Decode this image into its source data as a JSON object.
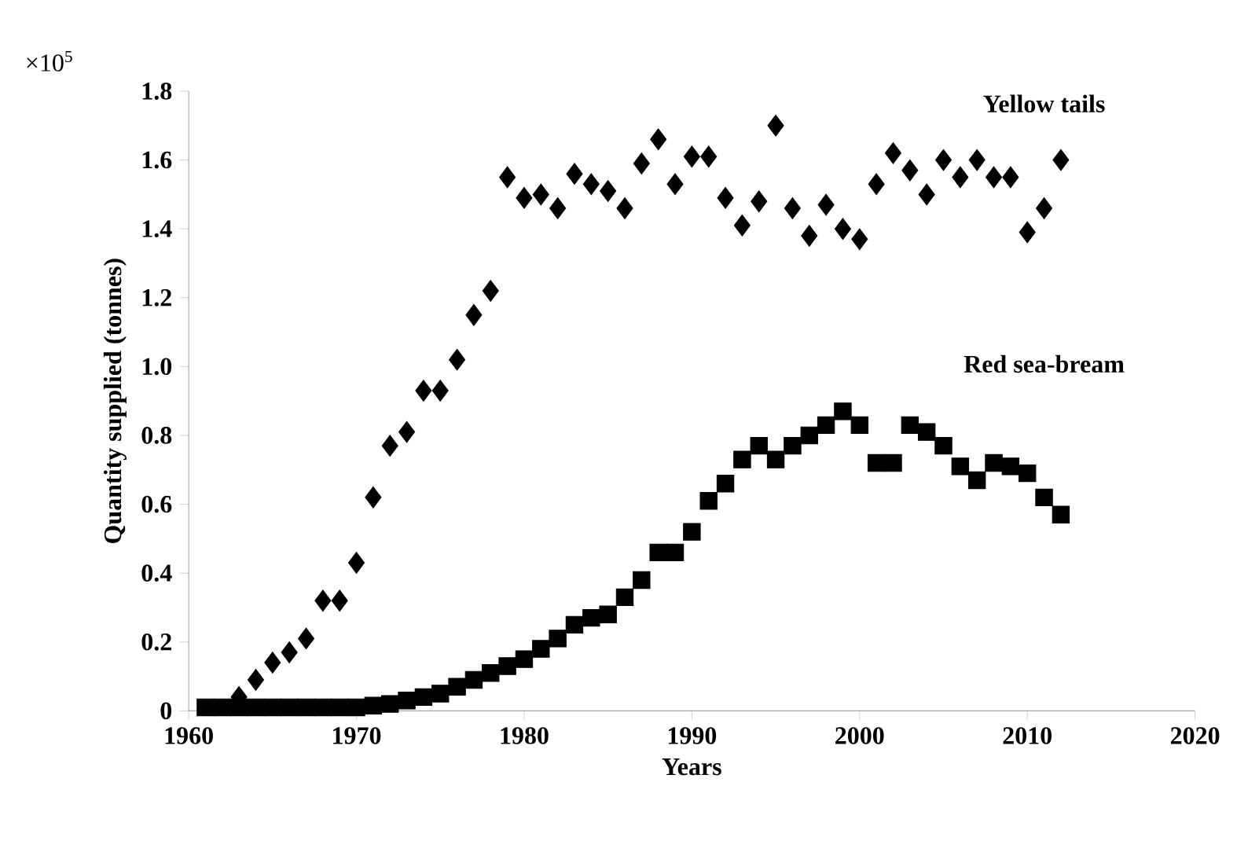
{
  "chart_data": {
    "type": "scatter",
    "xlabel": "Years",
    "ylabel": "Quantity supplied (tonnes)",
    "annotations": [
      "×10$^{5}$"
    ],
    "xlim": [
      1960,
      2020
    ],
    "xticks": [
      1960,
      1970,
      1980,
      1990,
      2000,
      2010,
      2020
    ],
    "ylim": [
      0,
      1.8
    ],
    "yticks": [
      0,
      0.2,
      0.4,
      0.6,
      0.8,
      {
        "value": 1.0,
        "label": "1.0"
      },
      1.2,
      1.4,
      1.6,
      1.8
    ],
    "grid": false,
    "legend": false,
    "x": [
      1961,
      1962,
      1963,
      1964,
      1965,
      1966,
      1967,
      1968,
      1969,
      1970,
      1971,
      1972,
      1973,
      1974,
      1975,
      1976,
      1977,
      1978,
      1979,
      1980,
      1981,
      1982,
      1983,
      1984,
      1985,
      1986,
      1987,
      1988,
      1989,
      1990,
      1991,
      1992,
      1993,
      1994,
      1995,
      1996,
      1997,
      1998,
      1999,
      2000,
      2001,
      2002,
      2003,
      2004,
      2005,
      2006,
      2007,
      2008,
      2009,
      2010,
      2011,
      2012
    ],
    "series": [
      {
        "name": "Yellow tails",
        "color": "#000000",
        "marker": "diamond",
        "values": [
          null,
          null,
          0.04,
          0.09,
          0.14,
          0.17,
          0.21,
          0.32,
          0.32,
          0.43,
          0.62,
          0.77,
          0.81,
          0.93,
          0.93,
          1.02,
          1.15,
          1.22,
          1.55,
          1.49,
          1.5,
          1.46,
          1.56,
          1.53,
          1.51,
          1.46,
          1.59,
          1.66,
          1.53,
          1.61,
          1.61,
          1.49,
          1.41,
          1.48,
          1.7,
          1.46,
          1.38,
          1.47,
          1.4,
          1.37,
          1.53,
          1.62,
          1.57,
          1.5,
          1.6,
          1.55,
          1.6,
          1.55,
          1.55,
          1.39,
          1.46,
          1.6
        ]
      },
      {
        "name": "Red sea-bream",
        "color": "#000000",
        "marker": "square",
        "values": [
          0.01,
          0.01,
          0.01,
          0.01,
          0.01,
          0.01,
          0.01,
          0.01,
          0.01,
          0.01,
          0.015,
          0.02,
          0.03,
          0.04,
          0.05,
          0.07,
          0.09,
          0.11,
          0.13,
          0.15,
          0.18,
          0.21,
          0.25,
          0.27,
          0.28,
          0.33,
          0.38,
          0.46,
          0.46,
          0.52,
          0.61,
          0.66,
          0.73,
          0.77,
          0.73,
          0.77,
          0.8,
          0.83,
          0.87,
          0.83,
          0.72,
          0.72,
          0.83,
          0.81,
          0.77,
          0.71,
          0.67,
          0.72,
          0.71,
          0.69,
          0.62,
          0.57
        ]
      }
    ]
  }
}
